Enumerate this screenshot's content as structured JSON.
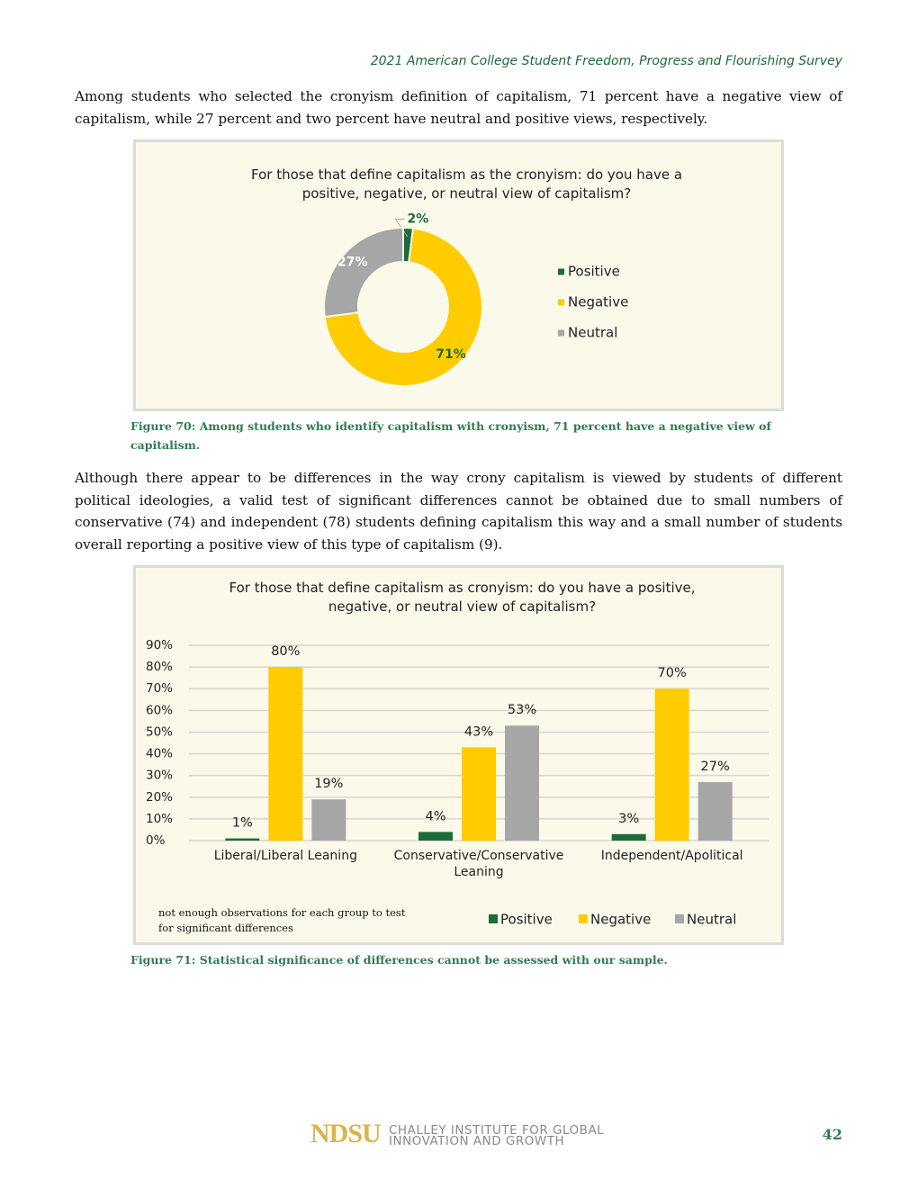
{
  "header": "2021 American College Student Freedom, Progress and Flourishing Survey",
  "paragraphs": [
    "Among students who selected the cronyism definition of capitalism, 71 percent have a negative view of capitalism, while 27 percent and two percent have neutral and positive views, respectively.",
    "Although there appear to be differences in the way crony capitalism is viewed by students of different political ideologies, a valid test of significant differences cannot be obtained due to small numbers of conservative (74) and independent (78) students defining capitalism this way and a small number of students overall reporting a positive view of this type of capitalism (9)."
  ],
  "chart_data": [
    {
      "type": "donut",
      "title": "For those that define capitalism as the cronyism: do you have a positive, negative, or neutral view of capitalism?",
      "categories": [
        "Positive",
        "Negative",
        "Neutral"
      ],
      "values": [
        2,
        71,
        27
      ],
      "value_labels": [
        "2%",
        "71%",
        "27%"
      ],
      "colors": [
        "#1e6b3a",
        "#ffcc00",
        "#a6a6a6"
      ],
      "legend": "right"
    },
    {
      "type": "bar",
      "title": "For those that define capitalism as cronyism: do you have a positive, negative, or neutral view of capitalism?",
      "categories": [
        "Liberal/Liberal Leaning",
        "Conservative/Conservative Leaning",
        "Independent/Apolitical"
      ],
      "series": [
        {
          "name": "Positive",
          "color": "#1e6b3a",
          "values": [
            1,
            4,
            3
          ],
          "value_labels": [
            "1%",
            "4%",
            "3%"
          ]
        },
        {
          "name": "Negative",
          "color": "#ffcc00",
          "values": [
            80,
            43,
            70
          ],
          "value_labels": [
            "80%",
            "43%",
            "70%"
          ]
        },
        {
          "name": "Neutral",
          "color": "#a6a6a6",
          "values": [
            19,
            53,
            27
          ],
          "value_labels": [
            "19%",
            "53%",
            "27%"
          ]
        }
      ],
      "ylim": [
        0,
        90
      ],
      "yticks": [
        {
          "value": 0,
          "label": "0%"
        },
        {
          "value": 10,
          "label": "10%"
        },
        {
          "value": 20,
          "label": "20%"
        },
        {
          "value": 30,
          "label": "30%"
        },
        {
          "value": 40,
          "label": "40%"
        },
        {
          "value": 50,
          "label": "50%"
        },
        {
          "value": 60,
          "label": "60%"
        },
        {
          "value": 70,
          "label": "70%"
        },
        {
          "value": 80,
          "label": "80%"
        },
        {
          "value": 90,
          "label": "90%"
        }
      ],
      "grid": true,
      "legend": "bottom",
      "note": "not enough observations for each group to test for significant differences"
    }
  ],
  "captions": [
    "Figure 70: Among students who identify capitalism with cronyism, 71 percent have a negative view of capitalism.",
    "Figure 71: Statistical significance of differences cannot be assessed with our sample."
  ],
  "footer": {
    "logo": "NDSU",
    "institute_line1": "CHALLEY INSTITUTE FOR GLOBAL",
    "institute_line2": "INNOVATION AND GROWTH",
    "page_number": "42"
  }
}
